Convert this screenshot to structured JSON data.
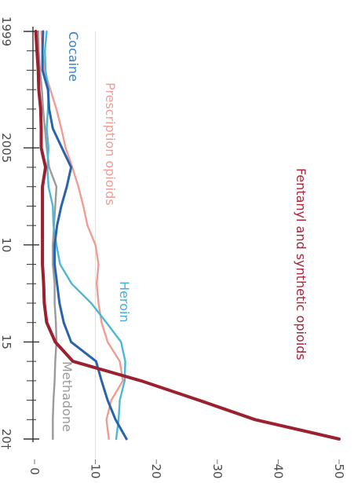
{
  "chart_data": {
    "type": "line",
    "orientation": "rotated-90-clockwise",
    "title": "",
    "xlabel": "",
    "ylabel": "",
    "x_tick_labels": [
      "1999",
      "2005",
      "10",
      "15",
      "20†"
    ],
    "x_tick_values": [
      1999,
      2005,
      2010,
      2015,
      2020
    ],
    "xlim": [
      1999,
      2020
    ],
    "y_tick_labels": [
      "0",
      "10",
      "20",
      "30",
      "40",
      "50"
    ],
    "y_tick_values": [
      0,
      10,
      20,
      30,
      40,
      50
    ],
    "ylim": [
      0,
      50
    ],
    "grid": false,
    "x": [
      1999,
      2000,
      2001,
      2002,
      2003,
      2004,
      2005,
      2006,
      2007,
      2008,
      2009,
      2010,
      2011,
      2012,
      2013,
      2014,
      2015,
      2016,
      2017,
      2018,
      2019,
      2020
    ],
    "series": [
      {
        "name": "Cocaine",
        "color": "#2a63ad",
        "label_color": "#3b7fc4",
        "values": [
          1.4,
          1.3,
          1.3,
          2.2,
          2.4,
          3.0,
          4.5,
          6.0,
          5.3,
          4.4,
          3.7,
          3.3,
          3.3,
          3.7,
          4.1,
          4.8,
          6.0,
          10.1,
          11.0,
          12.0,
          13.3,
          15.1
        ]
      },
      {
        "name": "Prescription opioids",
        "color": "#f29b93",
        "label_color": "#f19c93",
        "values": [
          1.1,
          1.3,
          1.6,
          2.6,
          3.6,
          4.4,
          5.1,
          6.2,
          7.2,
          8.0,
          8.7,
          10.0,
          10.5,
          10.2,
          10.5,
          11.0,
          12.0,
          14.0,
          14.5,
          12.6,
          11.8,
          12.2
        ]
      },
      {
        "name": "Heroin",
        "color": "#4cb7d4",
        "label_color": "#3cb0d6",
        "values": [
          2.0,
          1.7,
          1.8,
          2.3,
          2.2,
          2.0,
          2.3,
          2.1,
          2.3,
          3.0,
          3.1,
          3.6,
          4.2,
          6.1,
          9.3,
          11.8,
          14.2,
          14.9,
          14.8,
          14.0,
          13.8,
          13.4
        ]
      },
      {
        "name": "Methadone",
        "color": "#9a9a9a",
        "label_color": "#9a9a9a",
        "values": [
          0.6,
          0.7,
          0.9,
          1.2,
          1.4,
          1.7,
          2.0,
          2.4,
          3.6,
          3.4,
          3.2,
          3.0,
          3.0,
          3.3,
          3.3,
          3.5,
          3.6,
          3.4,
          3.3,
          3.1,
          3.0,
          3.0
        ]
      },
      {
        "name": "Fentanyl and synthetic opioids",
        "color": "#9b2030",
        "label_color": "#a8253a",
        "values": [
          0.2,
          0.4,
          0.6,
          0.7,
          1.0,
          1.1,
          1.1,
          1.8,
          1.3,
          1.3,
          1.3,
          1.3,
          1.3,
          1.5,
          1.6,
          2.0,
          3.4,
          6.3,
          17.5,
          27.0,
          36.2,
          50.0
        ]
      }
    ],
    "labels": {
      "cocaine": "Cocaine",
      "prescription": "Prescription opioids",
      "heroin": "Heroin",
      "methadone": "Methadone",
      "fentanyl": "Fentanyl and synthetic opioids"
    }
  }
}
